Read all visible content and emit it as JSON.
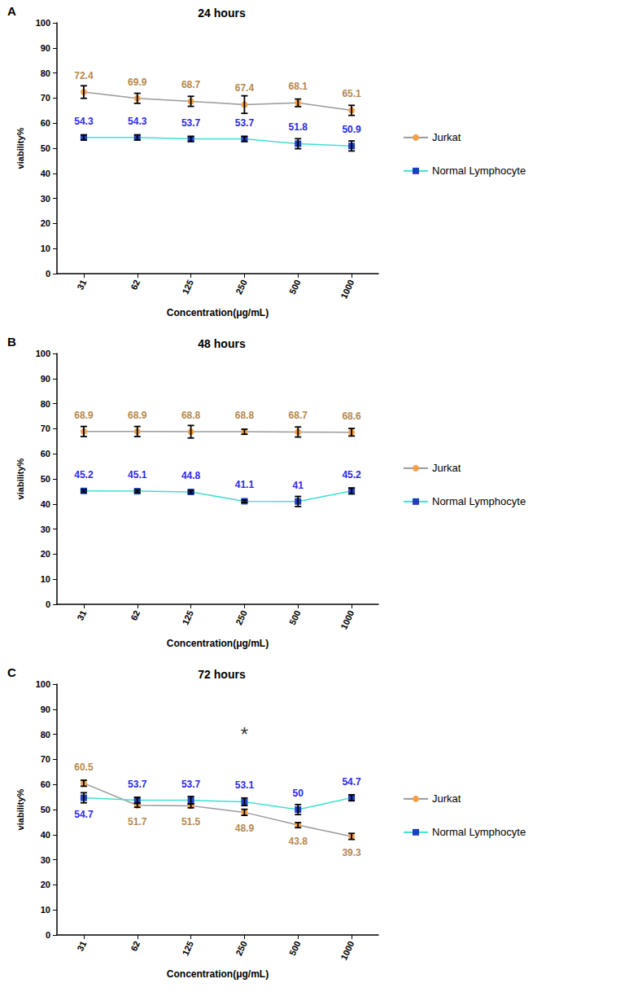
{
  "chart_data": [
    {
      "type": "line",
      "panel": "A",
      "title": "24 hours",
      "x_label": "Concentration(μg/mL)",
      "y_label": "viability%",
      "categories": [
        "31",
        "62",
        "125",
        "250",
        "500",
        "1000"
      ],
      "ylim": [
        0,
        100
      ],
      "yticks": [
        0,
        10,
        20,
        30,
        40,
        50,
        60,
        70,
        80,
        90,
        100
      ],
      "grid": false,
      "data_labels": true,
      "series": [
        {
          "name": "Jurkat",
          "color": "#f5a04a",
          "marker": "circle",
          "values": [
            72.4,
            69.9,
            68.7,
            67.4,
            68.1,
            65.1
          ],
          "errors": [
            2.5,
            2.0,
            2.0,
            3.5,
            1.5,
            2.0
          ]
        },
        {
          "name": "Normal Lymphocyte",
          "color": "#1f3fbf",
          "marker": "square",
          "values": [
            54.3,
            54.3,
            53.7,
            53.7,
            51.8,
            50.9
          ],
          "errors": [
            1.0,
            1.0,
            1.0,
            1.0,
            2.0,
            2.0
          ]
        }
      ]
    },
    {
      "type": "line",
      "panel": "B",
      "title": "48 hours",
      "x_label": "Concentration(μg/mL)",
      "y_label": "viability%",
      "categories": [
        "31",
        "62",
        "125",
        "250",
        "500",
        "1000"
      ],
      "ylim": [
        0,
        100
      ],
      "yticks": [
        0,
        10,
        20,
        30,
        40,
        50,
        60,
        70,
        80,
        90,
        100
      ],
      "grid": false,
      "data_labels": true,
      "series": [
        {
          "name": "Jurkat",
          "color": "#f5a04a",
          "marker": "circle",
          "values": [
            68.9,
            68.9,
            68.8,
            68.8,
            68.7,
            68.6
          ],
          "errors": [
            2.0,
            2.0,
            2.5,
            1.0,
            2.0,
            1.5
          ]
        },
        {
          "name": "Normal Lymphocyte",
          "color": "#1f3fbf",
          "marker": "square",
          "values": [
            45.2,
            45.1,
            44.8,
            41.1,
            41,
            45.2
          ],
          "errors": [
            0.5,
            0.5,
            0.5,
            0.5,
            2.0,
            1.2
          ]
        }
      ]
    },
    {
      "type": "line",
      "panel": "C",
      "title": "72 hours",
      "x_label": "Concentration(μg/mL)",
      "y_label": "viability%",
      "categories": [
        "31",
        "62",
        "125",
        "250",
        "500",
        "1000"
      ],
      "ylim": [
        0,
        100
      ],
      "yticks": [
        0,
        10,
        20,
        30,
        40,
        50,
        60,
        70,
        80,
        90,
        100
      ],
      "grid": false,
      "data_labels": true,
      "annotations": [
        {
          "text": "*",
          "x": "250",
          "y": 80
        }
      ],
      "series": [
        {
          "name": "Jurkat",
          "color": "#f5a04a",
          "marker": "circle",
          "values": [
            60.5,
            51.7,
            51.5,
            48.9,
            43.8,
            39.3
          ],
          "errors": [
            1.2,
            0.8,
            0.8,
            1.2,
            1.0,
            1.2
          ]
        },
        {
          "name": "Normal Lymphocyte",
          "color": "#1f3fbf",
          "marker": "square",
          "values": [
            54.7,
            53.7,
            53.7,
            53.1,
            50,
            54.7
          ],
          "errors": [
            2.0,
            1.2,
            1.5,
            1.5,
            2.0,
            1.2
          ]
        }
      ]
    }
  ]
}
